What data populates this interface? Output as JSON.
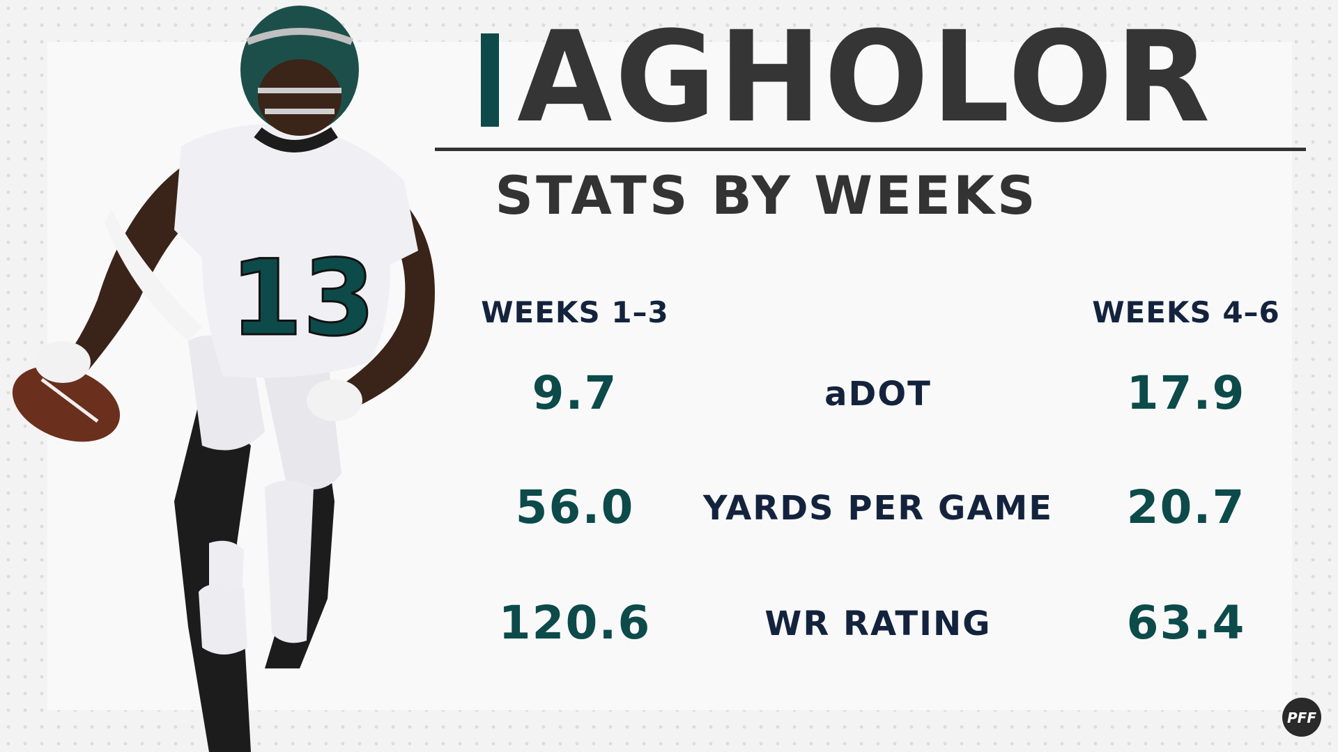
{
  "header": {
    "name": "AGHOLOR",
    "subtitle": "STATS BY WEEKS"
  },
  "columns": {
    "left": "WEEKS 1–3",
    "right": "WEEKS 4–6"
  },
  "stats": [
    {
      "label": "aDOT",
      "left": "9.7",
      "right": "17.9"
    },
    {
      "label": "YARDS PER GAME",
      "left": "56.0",
      "right": "20.7"
    },
    {
      "label": "WR RATING",
      "left": "120.6",
      "right": "63.4"
    }
  ],
  "player": {
    "jersey_number": "13"
  },
  "brand": {
    "logo_text": "PFF"
  },
  "colors": {
    "accent": "#0d4a4a",
    "navy": "#14233d",
    "name": "#353535"
  }
}
